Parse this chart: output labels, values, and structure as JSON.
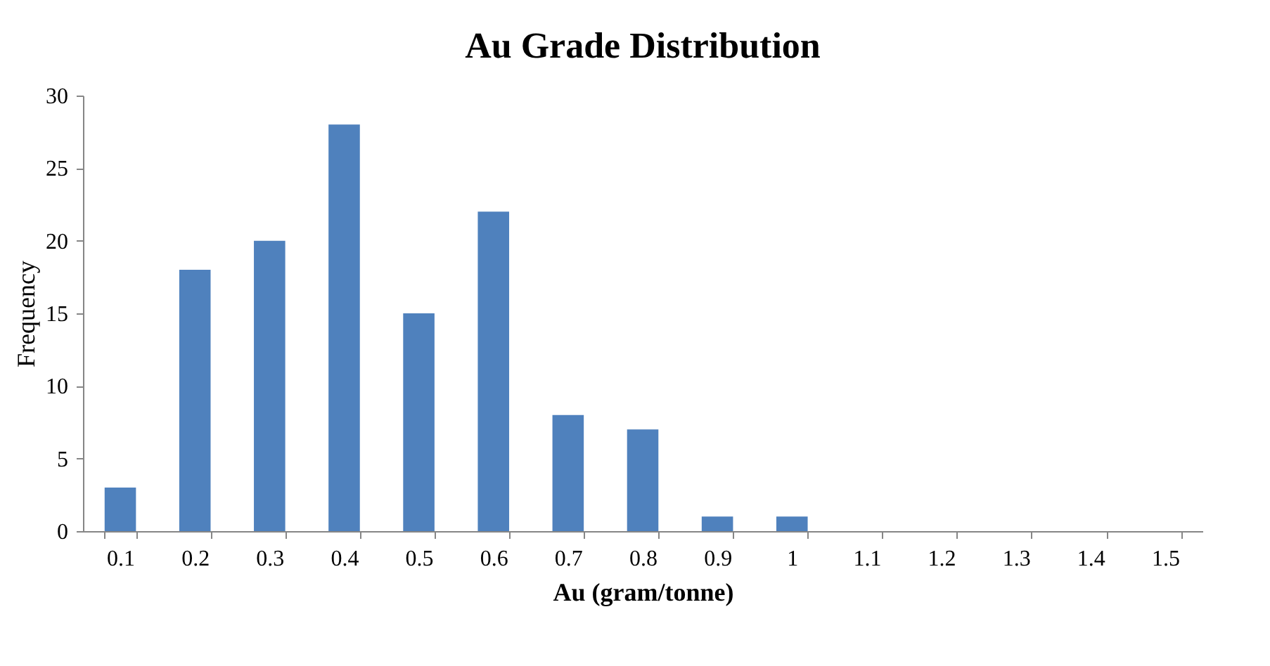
{
  "chart_data": {
    "type": "bar",
    "title": "Au Grade Distribution",
    "xlabel": "Au (gram/tonne)",
    "ylabel": "Frequency",
    "categories": [
      "0.1",
      "0.2",
      "0.3",
      "0.4",
      "0.5",
      "0.6",
      "0.7",
      "0.8",
      "0.9",
      "1",
      "1.1",
      "1.2",
      "1.3",
      "1.4",
      "1.5"
    ],
    "values": [
      3,
      18,
      20,
      28,
      15,
      22,
      8,
      7,
      1,
      1,
      0,
      0,
      0,
      0,
      0
    ],
    "color": "#4f81bd",
    "ylim": [
      0,
      30
    ],
    "yticks": [
      0,
      5,
      10,
      15,
      20,
      25,
      30
    ],
    "grid": false
  }
}
